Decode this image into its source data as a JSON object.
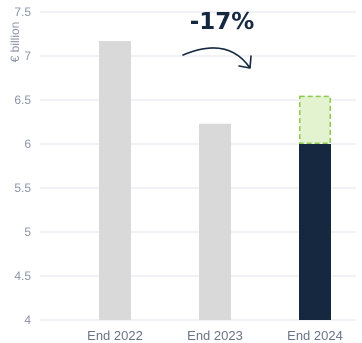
{
  "chart_data": {
    "type": "bar",
    "title": "",
    "ylabel": "€ billion",
    "xlabel": "",
    "ylim": [
      4,
      7.5
    ],
    "yticks": [
      4,
      4.5,
      5,
      5.5,
      6,
      6.5,
      7,
      7.5
    ],
    "ytick_labels": [
      "4",
      "4.5",
      "5",
      "5.5",
      "6",
      "6.5",
      "7",
      "7.5"
    ],
    "categories": [
      "End 2022",
      "End 2023",
      "End 2024"
    ],
    "values": [
      7.17,
      6.23,
      6.0
    ],
    "target": {
      "category": "End 2024",
      "from": 6.0,
      "to": 6.55
    },
    "annotation": "-17%",
    "grid": "horizontal",
    "colors": {
      "bar_past": "#d9d9d9",
      "bar_current": "#152840",
      "target_fill": "#e3f2cf",
      "target_border": "#8cc84b",
      "grid": "#e3e6ec",
      "arrow": "#152840"
    }
  }
}
